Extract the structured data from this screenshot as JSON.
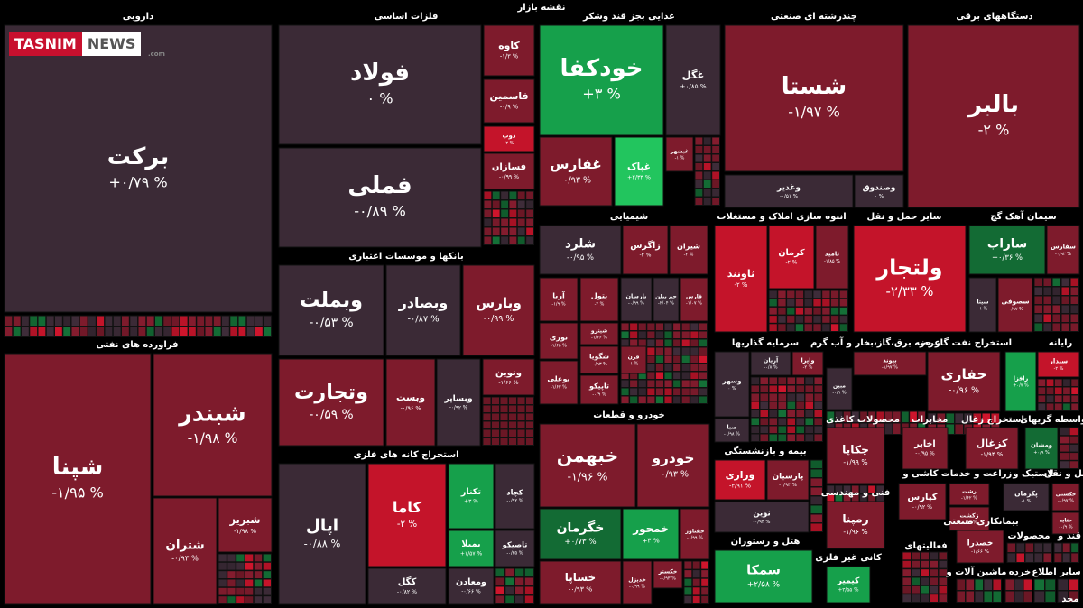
{
  "header": {
    "title": "نقشه بازار"
  },
  "branding": {
    "brand": "TASNIM",
    "brand_suffix": "NEWS",
    "url": ".com"
  },
  "colors": {
    "dark": "#3b2a36",
    "red": "#7e1b2c",
    "bright_red": "#c4142a",
    "dark_green": "#136b34",
    "green": "#16a04b",
    "bright_green": "#22c55e"
  },
  "chart_data": {
    "type": "heatmap",
    "sectors": [
      {
        "name": "دارویی",
        "tiles": [
          {
            "name": "برکت",
            "value": "+۰/۷۹ %",
            "color": "dark"
          }
        ]
      },
      {
        "name": "فلزات اساسی",
        "tiles": [
          {
            "name": "فولاد",
            "value": "۰ %",
            "color": "dark"
          },
          {
            "name": "فملی",
            "value": "-۰/۸۹ %",
            "color": "dark"
          },
          {
            "name": "کاوه",
            "value": "-۱/۳ %",
            "color": "red"
          },
          {
            "name": "فاسمین",
            "value": "-۰/۹ %",
            "color": "red"
          },
          {
            "name": "ذوب",
            "value": "-۲ %",
            "color": "bright_red"
          },
          {
            "name": "فسازان",
            "value": "-۰/۹۹ %",
            "color": "red"
          }
        ]
      },
      {
        "name": "غذایی بجز قند وشکر",
        "tiles": [
          {
            "name": "خودکفا",
            "value": "+۳ %",
            "color": "green"
          },
          {
            "name": "غفارس",
            "value": "-۰/۹۳ %",
            "color": "red"
          },
          {
            "name": "غگل",
            "value": "+۰/۸۵ %",
            "color": "dark"
          },
          {
            "name": "غپاک",
            "value": "+۲/۳۳ %",
            "color": "bright_green"
          },
          {
            "name": "غبشهر",
            "value": "-۱ %",
            "color": "red"
          }
        ]
      },
      {
        "name": "چندرشته ای صنعتی",
        "tiles": [
          {
            "name": "شستا",
            "value": "-۱/۹۷ %",
            "color": "red"
          },
          {
            "name": "وغدیر",
            "value": "-۰/۵۱ %",
            "color": "dark"
          },
          {
            "name": "وصندوق",
            "value": "۰ %",
            "color": "dark"
          }
        ]
      },
      {
        "name": "دستگاههای برقی",
        "tiles": [
          {
            "name": "بالبر",
            "value": "-۲ %",
            "color": "red"
          }
        ]
      },
      {
        "name": "بانکها و موسسات اعتباری",
        "tiles": [
          {
            "name": "وبملت",
            "value": "-۰/۵۳ %",
            "color": "dark"
          },
          {
            "name": "وبصادر",
            "value": "-۰/۸۷ %",
            "color": "dark"
          },
          {
            "name": "وپارس",
            "value": "-۰/۹۹ %",
            "color": "red"
          },
          {
            "name": "وتجارت",
            "value": "-۰/۵۹ %",
            "color": "red"
          },
          {
            "name": "وبست",
            "value": "-۰/۹۶ %",
            "color": "red"
          },
          {
            "name": "وبساپر",
            "value": "-۰/۹۲ %",
            "color": "dark"
          },
          {
            "name": "ونوین",
            "value": "-۱/۶۶ %",
            "color": "red"
          }
        ]
      },
      {
        "name": "شیمیایی",
        "tiles": [
          {
            "name": "شلرد",
            "value": "-۰/۹۵ %",
            "color": "dark"
          },
          {
            "name": "زاگرس",
            "value": "-۲ %",
            "color": "red"
          },
          {
            "name": "شیران",
            "value": "-۲ %",
            "color": "red"
          },
          {
            "name": "آریا",
            "value": "-۱/۹ %",
            "color": "red"
          },
          {
            "name": "پتول",
            "value": "-۲ %",
            "color": "red"
          },
          {
            "name": "پارسان",
            "value": "-۰/۹۹ %",
            "color": "dark"
          },
          {
            "name": "جم پیلن",
            "value": "-۲/۰۴ %",
            "color": "dark"
          },
          {
            "name": "فارس",
            "value": "-۱/۰۷ %",
            "color": "red"
          },
          {
            "name": "نوری",
            "value": "-۱/۶۵ %",
            "color": "red"
          },
          {
            "name": "شیترو",
            "value": "-۱/۶۶ %",
            "color": "red"
          },
          {
            "name": "شگویا",
            "value": "-۰/۹۳ %",
            "color": "red"
          },
          {
            "name": "بوعلی",
            "value": "-۱/۶۳ %",
            "color": "red"
          },
          {
            "name": "تاپیکو",
            "value": "-۰/۹ %",
            "color": "red"
          },
          {
            "name": "قرن",
            "value": "-۱ %",
            "color": "red"
          }
        ]
      },
      {
        "name": "انبوه سازی املاک و مستغلات",
        "tiles": [
          {
            "name": "ثاونند",
            "value": "-۲ %",
            "color": "bright_red"
          },
          {
            "name": "کرمان",
            "value": "-۲ %",
            "color": "bright_red"
          },
          {
            "name": "ثامید",
            "value": "-۱/۸۵ %",
            "color": "red"
          }
        ]
      },
      {
        "name": "سایر حمل و نقل",
        "tiles": [
          {
            "name": "ولتجار",
            "value": "-۲/۳۳ %",
            "color": "bright_red"
          }
        ]
      },
      {
        "name": "سیمان آهک گچ",
        "tiles": [
          {
            "name": "سفارس",
            "value": "-۰/۹۲ %",
            "color": "red"
          },
          {
            "name": "ساراب",
            "value": "+۰/۳۶ %",
            "color": "dark_green"
          },
          {
            "name": "سیتا",
            "value": "-۱ %",
            "color": "dark"
          },
          {
            "name": "سصوفی",
            "value": "-۰/۹۷ %",
            "color": "red"
          }
        ]
      },
      {
        "name": "فراورده های نفتی",
        "tiles": [
          {
            "name": "شپنا",
            "value": "-۱/۹۵ %",
            "color": "red"
          },
          {
            "name": "شبندر",
            "value": "-۱/۹۸ %",
            "color": "red"
          },
          {
            "name": "شتران",
            "value": "-۰/۹۳ %",
            "color": "red"
          },
          {
            "name": "شبریز",
            "value": "-۱/۹۸ %",
            "color": "red"
          }
        ]
      },
      {
        "name": "استخراج کانه های فلزی",
        "tiles": [
          {
            "name": "اپال",
            "value": "-۰/۸۸ %",
            "color": "dark"
          },
          {
            "name": "کاما",
            "value": "-۲ %",
            "color": "bright_red"
          },
          {
            "name": "تکنار",
            "value": "+۳ %",
            "color": "green"
          },
          {
            "name": "کچاد",
            "value": "-۰/۹۲ %",
            "color": "dark"
          },
          {
            "name": "بمیلا",
            "value": "+۱/۵۷ %",
            "color": "green"
          },
          {
            "name": "تاصیکو",
            "value": "-۰/۳۵ %",
            "color": "dark"
          },
          {
            "name": "کگل",
            "value": "-۰/۸۲ %",
            "color": "dark"
          },
          {
            "name": "ومعادن",
            "value": "-۰/۶۶ %",
            "color": "dark"
          }
        ]
      },
      {
        "name": "خودرو و قطعات",
        "tiles": [
          {
            "name": "خبهمن",
            "value": "-۱/۹۶ %",
            "color": "red"
          },
          {
            "name": "خودرو",
            "value": "-۰/۹۳ %",
            "color": "red"
          },
          {
            "name": "خگرمان",
            "value": "+۰/۷۳ %",
            "color": "dark_green"
          },
          {
            "name": "خمحور",
            "value": "+۳ %",
            "color": "green"
          },
          {
            "name": "خفناور",
            "value": "-۰/۹۹ %",
            "color": "red"
          },
          {
            "name": "خساپا",
            "value": "-۰/۹۳ %",
            "color": "red"
          },
          {
            "name": "خدیزل",
            "value": "-۰/۹۹ %",
            "color": "red"
          },
          {
            "name": "خکستر",
            "value": "-۰/۹۳ %",
            "color": "red"
          }
        ]
      },
      {
        "name": "سرمایه گذاریها",
        "tiles": [
          {
            "name": "وسهر",
            "value": "۰ %",
            "color": "dark"
          },
          {
            "name": "آریان",
            "value": "-۰/۸ %",
            "color": "dark"
          },
          {
            "name": "واپرا",
            "value": "-۲ %",
            "color": "red"
          },
          {
            "name": "صبا",
            "value": "-۰/۹۸ %",
            "color": "dark"
          }
        ]
      },
      {
        "name": "عرضه برق،گاز،بخار و آب گرم",
        "tiles": [
          {
            "name": "بیوند",
            "value": "-۱/۹۷ %",
            "color": "red"
          },
          {
            "name": "مبین",
            "value": "-۰/۹ %",
            "color": "dark"
          }
        ]
      },
      {
        "name": "استخراج نفت گاز جز",
        "tiles": [
          {
            "name": "حفاری",
            "value": "-۰/۹۶ %",
            "color": "red"
          }
        ]
      },
      {
        "name": "رایانه",
        "tiles": [
          {
            "name": "رافزا",
            "value": "+۰/۷ %",
            "color": "green"
          },
          {
            "name": "سیدار",
            "value": "-۲ %",
            "color": "bright_red"
          }
        ]
      },
      {
        "name": "بیمه و بازنشستگی",
        "tiles": [
          {
            "name": "ورازی",
            "value": "-۲/۹۱ %",
            "color": "bright_red"
          },
          {
            "name": "پارسیان",
            "value": "-۰/۹۴ %",
            "color": "red"
          },
          {
            "name": "نوین",
            "value": "-۰/۹۲ %",
            "color": "dark"
          }
        ]
      },
      {
        "name": "محصولات کاغذی",
        "tiles": [
          {
            "name": "چکاپا",
            "value": "-۱/۹۹ %",
            "color": "red"
          }
        ]
      },
      {
        "name": "مخابرات",
        "tiles": [
          {
            "name": "اخابر",
            "value": "-۰/۹۵ %",
            "color": "red"
          }
        ]
      },
      {
        "name": "استخراج زغال",
        "tiles": [
          {
            "name": "کزغال",
            "value": "-۱/۹۴ %",
            "color": "red"
          }
        ]
      },
      {
        "name": "واسطه گریهای",
        "tiles": [
          {
            "name": "ومشان",
            "value": "+۰/۹ %",
            "color": "dark_green"
          }
        ]
      },
      {
        "name": "فنی و مهندسی",
        "tiles": [
          {
            "name": "رمپنا",
            "value": "-۱/۹۶ %",
            "color": "red"
          }
        ]
      },
      {
        "name": "کاشی و",
        "tiles": [
          {
            "name": "کپارس",
            "value": "-۰/۹۲ %",
            "color": "red"
          }
        ]
      },
      {
        "name": "زراعت و خدمات",
        "tiles": [
          {
            "name": "زشت",
            "value": "-۱/۶۲ %",
            "color": "red"
          },
          {
            "name": "زکشت",
            "value": "-۰/۹۹ %",
            "color": "red"
          }
        ]
      },
      {
        "name": "لاستیک و",
        "tiles": [
          {
            "name": "پکرمان",
            "value": "-۱ %",
            "color": "dark"
          }
        ]
      },
      {
        "name": "حمل و نقل",
        "tiles": [
          {
            "name": "حکشتی",
            "value": "-۰/۹۷ %",
            "color": "red"
          },
          {
            "name": "حتاید",
            "value": "-۰/۹ %",
            "color": "red"
          }
        ]
      },
      {
        "name": "هتل و رستوران",
        "tiles": [
          {
            "name": "سمکا",
            "value": "+۲/۵۸ %",
            "color": "green"
          }
        ]
      },
      {
        "name": "کانی غیر فلزی",
        "tiles": [
          {
            "name": "کیمیر",
            "value": "+۳/۵۵ %",
            "color": "green"
          }
        ]
      },
      {
        "name": "فعالیتهای",
        "tiles": []
      },
      {
        "name": "بیمانکاری صنعتی",
        "tiles": [
          {
            "name": "خصدرا",
            "value": "-۱/۶۶ %",
            "color": "red"
          }
        ]
      },
      {
        "name": "محصولات",
        "tiles": []
      },
      {
        "name": "قند و",
        "tiles": []
      },
      {
        "name": "ماشین آلات و",
        "tiles": []
      },
      {
        "name": "خرده",
        "tiles": []
      },
      {
        "name": "سایر",
        "tiles": []
      },
      {
        "name": "اطلاع",
        "tiles": []
      },
      {
        "name": "محد",
        "tiles": []
      }
    ]
  }
}
